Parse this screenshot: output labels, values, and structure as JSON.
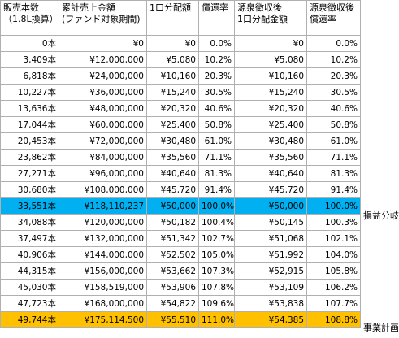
{
  "headers": [
    "販売本数\n（1.8L換算）",
    "累計売上金額\n(ファンド対象期間)",
    "1口分配額",
    "償還率",
    "源泉徴収後\n1口分配金額",
    "源泉徴収後\n償還率"
  ],
  "rows": [
    [
      "0本",
      "¥0",
      "¥0",
      "0.0%",
      "¥0",
      "0.0%"
    ],
    [
      "3,409本",
      "¥12,000,000",
      "¥5,080",
      "10.2%",
      "¥5,080",
      "10.2%"
    ],
    [
      "6,818本",
      "¥24,000,000",
      "¥10,160",
      "20.3%",
      "¥10,160",
      "20.3%"
    ],
    [
      "10,227本",
      "¥36,000,000",
      "¥15,240",
      "30.5%",
      "¥15,240",
      "30.5%"
    ],
    [
      "13,636本",
      "¥48,000,000",
      "¥20,320",
      "40.6%",
      "¥20,320",
      "40.6%"
    ],
    [
      "17,044本",
      "¥60,000,000",
      "¥25,400",
      "50.8%",
      "¥25,400",
      "50.8%"
    ],
    [
      "20,453本",
      "¥72,000,000",
      "¥30,480",
      "61.0%",
      "¥30,480",
      "61.0%"
    ],
    [
      "23,862本",
      "¥84,000,000",
      "¥35,560",
      "71.1%",
      "¥35,560",
      "71.1%"
    ],
    [
      "27,271本",
      "¥96,000,000",
      "¥40,640",
      "81.3%",
      "¥40,640",
      "81.3%"
    ],
    [
      "30,680本",
      "¥108,000,000",
      "¥45,720",
      "91.4%",
      "¥45,720",
      "91.4%"
    ],
    [
      "33,551本",
      "¥118,110,237",
      "¥50,000",
      "100.0%",
      "¥50,000",
      "100.0%"
    ],
    [
      "34,088本",
      "¥120,000,000",
      "¥50,182",
      "100.4%",
      "¥50,145",
      "100.3%"
    ],
    [
      "37,497本",
      "¥132,000,000",
      "¥51,342",
      "102.7%",
      "¥51,068",
      "102.1%"
    ],
    [
      "40,906本",
      "¥144,000,000",
      "¥52,502",
      "105.0%",
      "¥51,992",
      "104.0%"
    ],
    [
      "44,315本",
      "¥156,000,000",
      "¥53,662",
      "107.3%",
      "¥52,915",
      "105.8%"
    ],
    [
      "45,030本",
      "¥158,519,000",
      "¥53,906",
      "107.8%",
      "¥53,109",
      "106.2%"
    ],
    [
      "47,723本",
      "¥168,000,000",
      "¥54,822",
      "109.6%",
      "¥53,838",
      "107.7%"
    ],
    [
      "49,744本",
      "¥175,114,500",
      "¥55,510",
      "111.0%",
      "¥54,385",
      "108.8%"
    ]
  ],
  "side_labels": {
    "break_even": "損益分岐",
    "business_plan": "事業計画"
  },
  "colors": {
    "break_even_row": "#00b0f0",
    "plan_row": "#ffc000"
  }
}
